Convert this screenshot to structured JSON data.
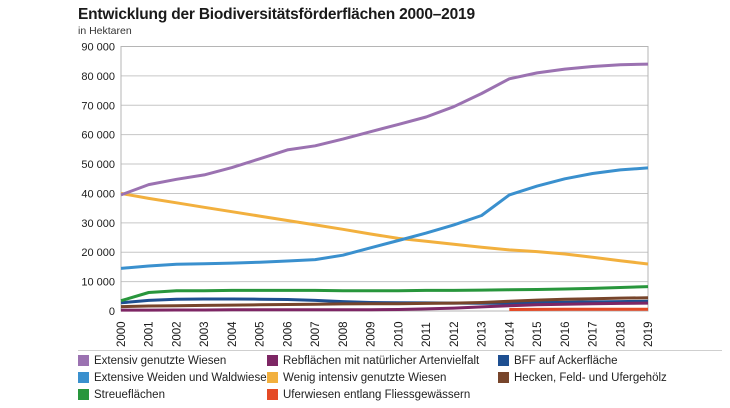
{
  "page": {
    "title": "Entwicklung der Biodiversitätsförderflächen 2000–2019",
    "subtitle": "in Hektaren"
  },
  "chart_data": {
    "type": "line",
    "title": "Entwicklung der Biodiversitätsförderflächen 2000–2019",
    "ylabel": "in Hektaren",
    "xlabel": "",
    "grid": true,
    "legend_position": "bottom",
    "ylim": [
      0,
      90000
    ],
    "ytick_step": 10000,
    "ytick_labels": [
      "0",
      "10 000",
      "20 000",
      "30 000",
      "40 000",
      "50 000",
      "60 000",
      "70 000",
      "80 000",
      "90 000"
    ],
    "x": [
      2000,
      2001,
      2002,
      2003,
      2004,
      2005,
      2006,
      2007,
      2008,
      2009,
      2010,
      2011,
      2012,
      2013,
      2014,
      2015,
      2016,
      2017,
      2018,
      2019
    ],
    "series": [
      {
        "id": "extensiv",
        "label": "Extensiv genutzte Wiesen",
        "color": "#9B72B1",
        "values": [
          39500,
          43000,
          44800,
          46300,
          48800,
          51800,
          54800,
          56200,
          58500,
          61000,
          63500,
          66000,
          69500,
          74000,
          79000,
          81000,
          82300,
          83200,
          83800,
          84000
        ]
      },
      {
        "id": "weiden",
        "label": "Extensive Weiden und Waldwiesen",
        "color": "#3A90CE",
        "values": [
          14500,
          15300,
          15900,
          16100,
          16300,
          16600,
          17000,
          17500,
          19000,
          21500,
          24000,
          26500,
          29300,
          32500,
          39500,
          42500,
          45000,
          46800,
          48000,
          48700
        ]
      },
      {
        "id": "streue",
        "label": "Streueflächen",
        "color": "#28963C",
        "values": [
          3500,
          6300,
          6900,
          6900,
          7000,
          7000,
          7000,
          7000,
          6900,
          6900,
          6900,
          7000,
          7000,
          7100,
          7200,
          7300,
          7500,
          7700,
          8000,
          8300
        ]
      },
      {
        "id": "reb",
        "label": "Rebflächen mit natürlicher Artenvielfalt",
        "color": "#7D2664",
        "values": [
          300,
          300,
          350,
          350,
          400,
          400,
          400,
          400,
          450,
          450,
          500,
          700,
          1000,
          1400,
          1800,
          2100,
          2300,
          2500,
          2600,
          2700
        ]
      },
      {
        "id": "wenig",
        "label": "Wenig intensiv genutzte Wiesen",
        "color": "#F2B03E",
        "values": [
          40000,
          38300,
          36800,
          35300,
          33800,
          32300,
          30800,
          29300,
          27800,
          26200,
          24700,
          23700,
          22700,
          21700,
          20800,
          20200,
          19400,
          18300,
          17100,
          16000
        ]
      },
      {
        "id": "ufer",
        "label": "Uferwiesen entlang Fliessgewässern",
        "color": "#E54A26",
        "values": [
          null,
          null,
          null,
          null,
          null,
          null,
          null,
          null,
          null,
          null,
          null,
          null,
          null,
          null,
          500,
          550,
          600,
          600,
          600,
          600
        ]
      },
      {
        "id": "bff",
        "label": "BFF auf Ackerfläche",
        "color": "#1E4F91",
        "values": [
          2800,
          3600,
          4000,
          4100,
          4100,
          4000,
          3900,
          3600,
          3200,
          2900,
          2800,
          2750,
          2700,
          2650,
          2600,
          2900,
          3000,
          3100,
          3200,
          3300
        ]
      },
      {
        "id": "hecken",
        "label": "Hecken, Feld- und Ufergehölz",
        "color": "#77452B",
        "values": [
          1500,
          1700,
          1800,
          1900,
          2000,
          2100,
          2200,
          2300,
          2400,
          2450,
          2500,
          2600,
          2700,
          2900,
          3300,
          3700,
          4000,
          4200,
          4400,
          4500
        ]
      }
    ],
    "draw_order": [
      "ufer",
      "bff",
      "reb",
      "hecken",
      "streue",
      "wenig",
      "weiden",
      "extensiv"
    ]
  },
  "legend": {
    "columns": [
      {
        "x": 78,
        "items": [
          "extensiv",
          "weiden",
          "streue"
        ]
      },
      {
        "x": 267,
        "items": [
          "reb",
          "wenig",
          "ufer"
        ]
      },
      {
        "x": 498,
        "items": [
          "bff",
          "hecken"
        ]
      }
    ]
  }
}
